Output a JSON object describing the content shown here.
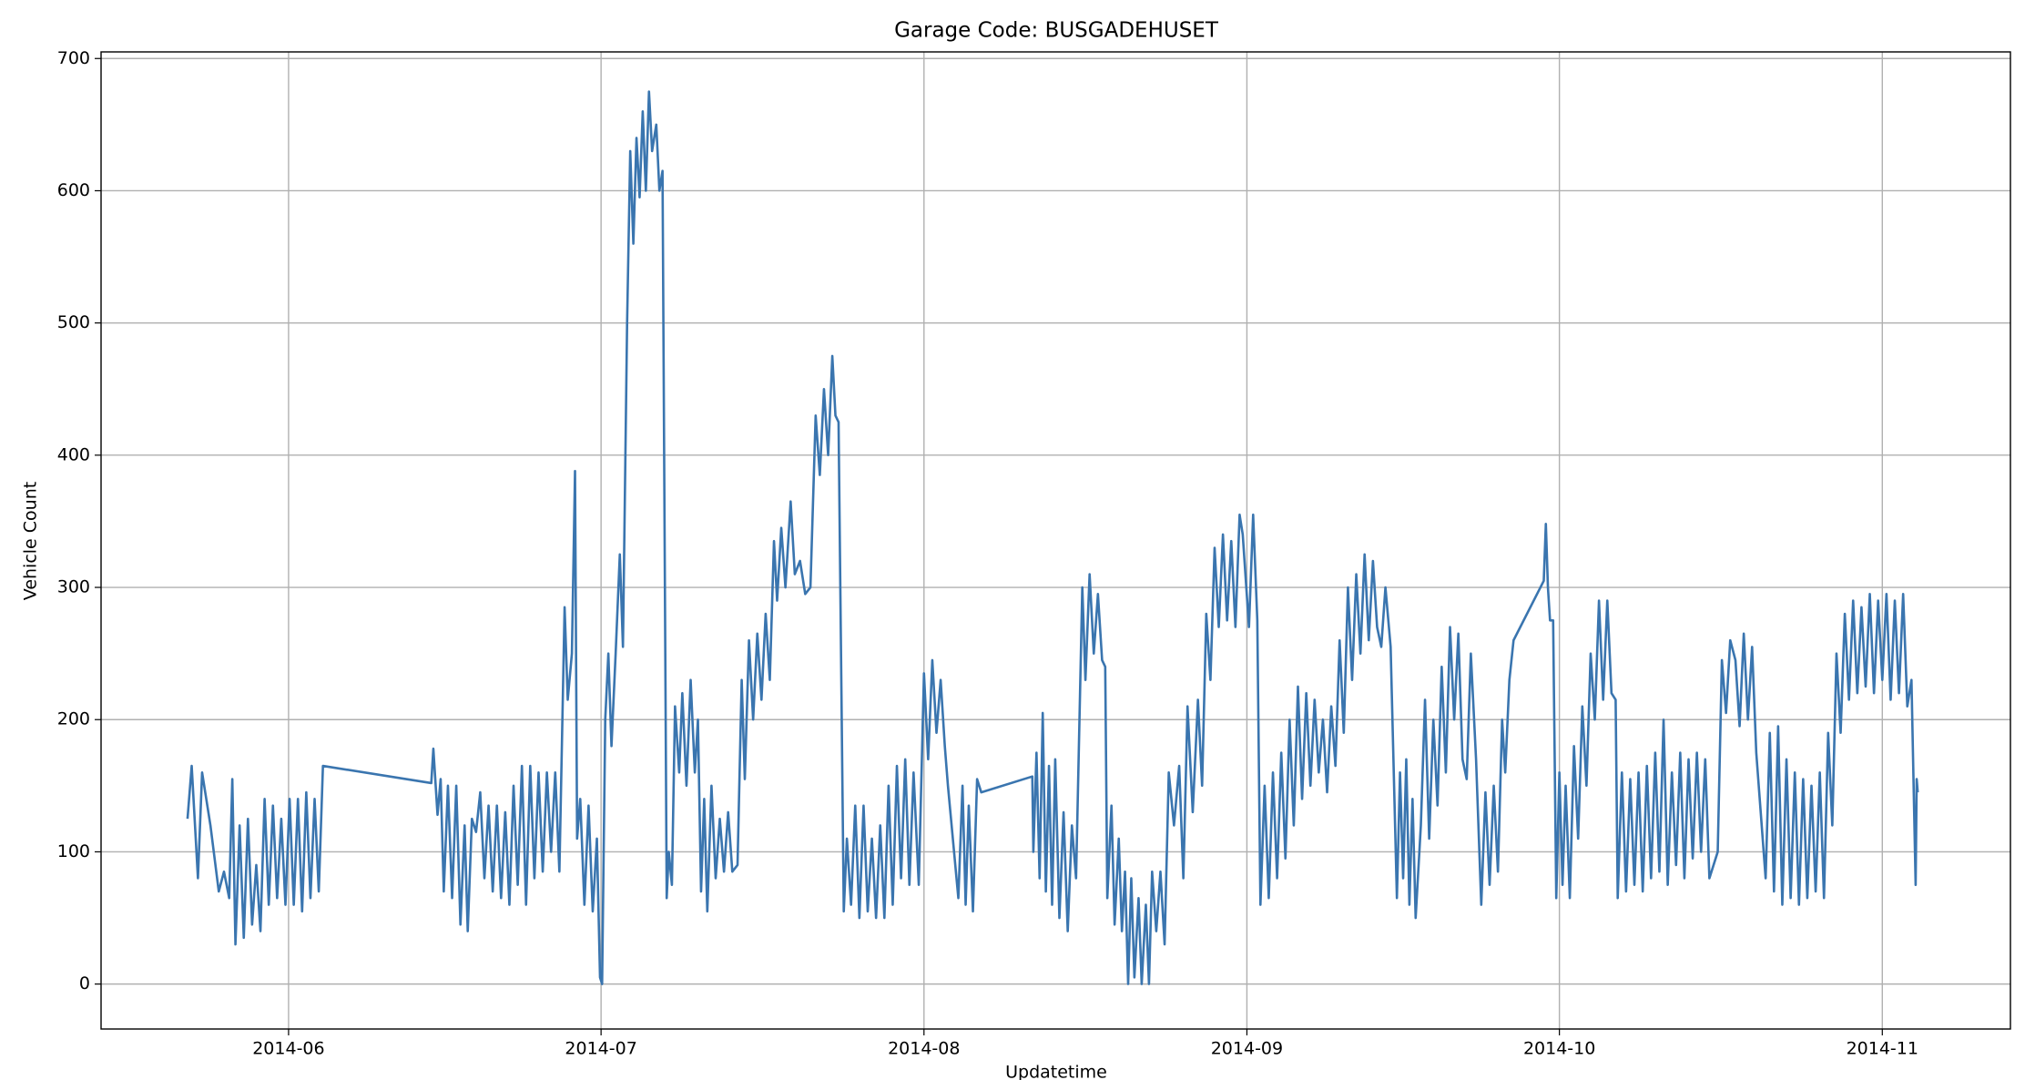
{
  "chart_data": {
    "type": "line",
    "title": "Garage Code: BUSGADEHUSET",
    "x_label": "Updatetime",
    "y_label": "Vehicle Count",
    "color": "#3a75af",
    "grid": true,
    "xlim": [
      134,
      317.3
    ],
    "ylim": [
      -34,
      705
    ],
    "xticks": [
      {
        "value": 152,
        "label": "2014-06"
      },
      {
        "value": 182,
        "label": "2014-07"
      },
      {
        "value": 213,
        "label": "2014-08"
      },
      {
        "value": 244,
        "label": "2014-09"
      },
      {
        "value": 274,
        "label": "2014-10"
      },
      {
        "value": 305,
        "label": "2014-11"
      }
    ],
    "yticks": [
      0,
      100,
      200,
      300,
      400,
      500,
      600,
      700
    ],
    "x": [
      142.3,
      142.7,
      143.3,
      143.7,
      144.5,
      145.3,
      145.8,
      146.3,
      146.6,
      146.9,
      147.3,
      147.7,
      148.1,
      148.5,
      148.9,
      149.3,
      149.7,
      150.1,
      150.5,
      150.9,
      151.3,
      151.7,
      152.1,
      152.5,
      152.9,
      153.3,
      153.7,
      154.1,
      154.5,
      154.9,
      155.3,
      165.7,
      165.9,
      166.3,
      166.6,
      166.9,
      167.3,
      167.7,
      168.1,
      168.5,
      168.9,
      169.2,
      169.6,
      170,
      170.4,
      170.8,
      171.2,
      171.6,
      172,
      172.4,
      172.8,
      173.2,
      173.6,
      174,
      174.4,
      174.8,
      175.2,
      175.6,
      176,
      176.4,
      176.8,
      177.2,
      177.6,
      178,
      178.5,
      178.8,
      179.2,
      179.5,
      179.7,
      180,
      180.4,
      180.8,
      181.2,
      181.6,
      181.9,
      182.1,
      182.4,
      182.7,
      183,
      183.4,
      183.8,
      184.1,
      184.5,
      184.8,
      185.1,
      185.4,
      185.7,
      186,
      186.3,
      186.6,
      186.9,
      187.3,
      187.6,
      187.9,
      188.3,
      188.5,
      188.8,
      189.1,
      189.5,
      189.8,
      190.2,
      190.6,
      191,
      191.3,
      191.6,
      191.9,
      192.2,
      192.6,
      193,
      193.4,
      193.8,
      194.2,
      194.6,
      195.1,
      195.5,
      195.8,
      196.2,
      196.6,
      197,
      197.4,
      197.8,
      198.2,
      198.6,
      198.9,
      199.3,
      199.7,
      200.2,
      200.6,
      201.1,
      201.6,
      202.1,
      202.6,
      203,
      203.4,
      203.8,
      204.2,
      204.5,
      204.8,
      205.3,
      205.6,
      206,
      206.4,
      206.8,
      207.2,
      207.6,
      208,
      208.4,
      208.8,
      209.2,
      209.6,
      210,
      210.4,
      210.8,
      211.2,
      211.6,
      212,
      212.5,
      213,
      213.4,
      213.8,
      214.2,
      214.6,
      215,
      215.3,
      216.3,
      216.7,
      217,
      217.3,
      217.7,
      218.1,
      218.5,
      223.4,
      223.5,
      223.8,
      224.1,
      224.4,
      224.7,
      225,
      225.3,
      225.6,
      226,
      226.4,
      226.8,
      227.2,
      227.6,
      228.2,
      228.5,
      228.9,
      229.3,
      229.7,
      230.1,
      230.4,
      230.6,
      231,
      231.3,
      231.7,
      232,
      232.3,
      232.6,
      232.9,
      233.2,
      233.6,
      233.9,
      234.3,
      234.6,
      234.9,
      235.3,
      235.7,
      236.1,
      236.5,
      237,
      237.5,
      237.9,
      238.3,
      238.8,
      239.3,
      239.7,
      240.1,
      240.5,
      240.9,
      241.3,
      241.7,
      242.1,
      242.5,
      242.9,
      243.3,
      243.6,
      244.2,
      244.6,
      245,
      245.3,
      245.7,
      246.1,
      246.5,
      246.9,
      247.3,
      247.7,
      248.1,
      248.5,
      248.9,
      249.3,
      249.7,
      250.1,
      250.5,
      250.9,
      251.3,
      251.7,
      252.1,
      252.5,
      252.9,
      253.3,
      253.7,
      254.1,
      254.5,
      254.9,
      255.3,
      255.7,
      256.1,
      256.5,
      256.9,
      257.3,
      257.8,
      258.4,
      258.7,
      259,
      259.3,
      259.6,
      259.9,
      260.2,
      260.7,
      261.1,
      261.5,
      261.9,
      262.3,
      262.7,
      263.1,
      263.5,
      263.9,
      264.3,
      264.7,
      265.1,
      265.5,
      266,
      266.5,
      266.9,
      267.3,
      267.7,
      268.1,
      268.5,
      268.8,
      269.2,
      269.6,
      272.5,
      272.7,
      272.9,
      273.1,
      273.4,
      273.7,
      274,
      274.3,
      274.6,
      275,
      275.4,
      275.8,
      276.2,
      276.6,
      277,
      277.4,
      277.8,
      278.2,
      278.6,
      279,
      279.4,
      279.6,
      280,
      280.4,
      280.8,
      281.2,
      281.6,
      282,
      282.4,
      282.8,
      283.2,
      283.6,
      284,
      284.4,
      284.8,
      285.2,
      285.6,
      286,
      286.4,
      286.8,
      287.2,
      287.6,
      288,
      288.4,
      289.2,
      289.6,
      290,
      290.4,
      290.9,
      291.3,
      291.7,
      292.1,
      292.5,
      292.9,
      293.8,
      294.2,
      294.6,
      295,
      295.4,
      295.8,
      296.2,
      296.6,
      297,
      297.4,
      297.8,
      298.2,
      298.6,
      299,
      299.4,
      299.8,
      300.2,
      300.6,
      301,
      301.4,
      301.8,
      302.2,
      302.6,
      303,
      303.4,
      303.8,
      304.2,
      304.6,
      305,
      305.4,
      305.8,
      306.2,
      306.6,
      307,
      307.4,
      307.8,
      308.2,
      308.3,
      308.4
    ],
    "values": [
      125,
      165,
      80,
      160,
      120,
      70,
      85,
      65,
      155,
      30,
      120,
      35,
      125,
      45,
      90,
      40,
      140,
      60,
      135,
      65,
      125,
      60,
      140,
      60,
      140,
      55,
      145,
      65,
      140,
      70,
      165,
      152,
      178,
      128,
      155,
      70,
      150,
      65,
      150,
      45,
      120,
      40,
      125,
      115,
      145,
      80,
      135,
      70,
      135,
      65,
      130,
      60,
      150,
      75,
      165,
      60,
      165,
      80,
      160,
      85,
      160,
      100,
      160,
      85,
      285,
      215,
      250,
      388,
      110,
      140,
      60,
      135,
      55,
      110,
      5,
      0,
      200,
      250,
      180,
      250,
      325,
      255,
      500,
      630,
      560,
      640,
      595,
      660,
      600,
      675,
      630,
      650,
      600,
      615,
      65,
      100,
      75,
      210,
      160,
      220,
      150,
      230,
      160,
      200,
      70,
      140,
      55,
      150,
      80,
      125,
      85,
      130,
      85,
      90,
      230,
      155,
      260,
      200,
      265,
      215,
      280,
      230,
      335,
      290,
      345,
      300,
      365,
      310,
      320,
      295,
      300,
      430,
      385,
      450,
      400,
      475,
      430,
      425,
      55,
      110,
      60,
      135,
      50,
      135,
      55,
      110,
      50,
      120,
      50,
      150,
      60,
      165,
      80,
      170,
      75,
      160,
      75,
      235,
      170,
      245,
      190,
      230,
      180,
      150,
      65,
      150,
      60,
      135,
      55,
      155,
      145,
      157,
      100,
      175,
      80,
      205,
      70,
      165,
      60,
      170,
      50,
      130,
      40,
      120,
      80,
      300,
      230,
      310,
      250,
      295,
      245,
      240,
      65,
      135,
      45,
      110,
      40,
      85,
      0,
      80,
      5,
      65,
      0,
      60,
      0,
      85,
      40,
      85,
      30,
      160,
      120,
      165,
      80,
      210,
      130,
      215,
      150,
      280,
      230,
      330,
      270,
      340,
      275,
      335,
      270,
      355,
      340,
      270,
      355,
      275,
      60,
      150,
      65,
      160,
      80,
      175,
      95,
      200,
      120,
      225,
      140,
      220,
      150,
      215,
      160,
      200,
      145,
      210,
      165,
      260,
      190,
      300,
      230,
      310,
      250,
      325,
      260,
      320,
      270,
      255,
      300,
      255,
      65,
      160,
      80,
      170,
      60,
      140,
      50,
      120,
      215,
      110,
      200,
      135,
      240,
      160,
      270,
      200,
      265,
      170,
      155,
      250,
      170,
      60,
      145,
      75,
      150,
      85,
      200,
      160,
      230,
      260,
      305,
      348,
      300,
      275,
      275,
      65,
      160,
      75,
      150,
      65,
      180,
      110,
      210,
      150,
      250,
      200,
      290,
      215,
      290,
      220,
      215,
      65,
      160,
      70,
      155,
      75,
      160,
      70,
      165,
      80,
      175,
      85,
      200,
      75,
      160,
      90,
      175,
      80,
      170,
      95,
      175,
      100,
      170,
      80,
      100,
      245,
      205,
      260,
      245,
      195,
      265,
      200,
      255,
      175,
      80,
      190,
      70,
      195,
      60,
      170,
      65,
      160,
      60,
      155,
      65,
      150,
      70,
      160,
      65,
      190,
      120,
      250,
      190,
      280,
      215,
      290,
      220,
      285,
      225,
      295,
      220,
      290,
      230,
      295,
      215,
      290,
      220,
      295,
      210,
      230,
      75,
      155,
      145
    ]
  }
}
